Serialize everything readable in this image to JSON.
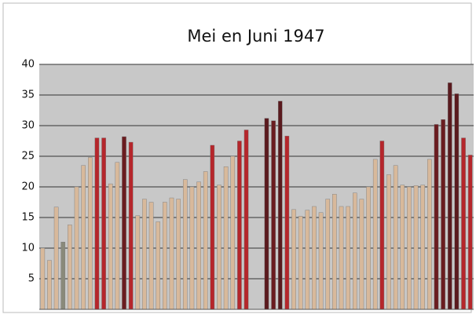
{
  "chart_data": {
    "type": "bar",
    "title": "Mei en Juni 1947",
    "categories": [
      null,
      null,
      null,
      null,
      null,
      null,
      null,
      null,
      null,
      null,
      null,
      null,
      null,
      null,
      null,
      null,
      null,
      null,
      null,
      null,
      null,
      null,
      null,
      null,
      null,
      null,
      null,
      null,
      null,
      null,
      null,
      null,
      null,
      null,
      null,
      null,
      null,
      null,
      null,
      null,
      null,
      null,
      null,
      null,
      null,
      null,
      null,
      null,
      null,
      null,
      null,
      null,
      null,
      null,
      null,
      null,
      null,
      null,
      null,
      null,
      null,
      null,
      null,
      null
    ],
    "values": [
      10,
      8,
      16.7,
      11,
      13.8,
      20,
      23.5,
      24.8,
      28,
      28,
      20.5,
      24,
      28.2,
      27.3,
      15.3,
      18,
      17.5,
      14.3,
      17.5,
      18.2,
      18,
      21.2,
      20,
      20.8,
      22.5,
      26.8,
      20.3,
      23.3,
      25,
      27.5,
      29.3,
      null,
      null,
      31.2,
      30.8,
      34,
      28.3,
      16.3,
      15.2,
      16.2,
      16.8,
      15.8,
      18,
      18.8,
      16.8,
      16.8,
      19,
      18,
      20,
      24.5,
      27.5,
      22,
      23.5,
      20.3,
      20,
      20.2,
      20.3,
      24.5,
      30.2,
      31,
      37,
      35.2,
      28,
      25.2
    ],
    "colors": [
      "#d8b99b",
      "#d8b99b",
      "#d8b99b",
      "#8a8a7a",
      "#d8b99b",
      "#d8b99b",
      "#d8b99b",
      "#d8b99b",
      "#b5262b",
      "#b5262b",
      "#d8b99b",
      "#d8b99b",
      "#6a1c20",
      "#b5262b",
      "#d8b99b",
      "#d8b99b",
      "#d8b99b",
      "#d8b99b",
      "#d8b99b",
      "#d8b99b",
      "#d8b99b",
      "#d8b99b",
      "#d8b99b",
      "#d8b99b",
      "#d8b99b",
      "#b5262b",
      "#d8b99b",
      "#d8b99b",
      "#d8b99b",
      "#b5262b",
      "#b5262b",
      null,
      null,
      "#5a1a1e",
      "#6a1c20",
      "#5a1a1e",
      "#b5262b",
      "#d8b99b",
      "#d8b99b",
      "#d8b99b",
      "#d8b99b",
      "#d8b99b",
      "#d8b99b",
      "#d8b99b",
      "#d8b99b",
      "#d8b99b",
      "#d8b99b",
      "#d8b99b",
      "#d8b99b",
      "#d8b99b",
      "#b5262b",
      "#d8b99b",
      "#d8b99b",
      "#d8b99b",
      "#d8b99b",
      "#d8b99b",
      "#d8b99b",
      "#d8b99b",
      "#6a1c20",
      "#6a1c20",
      "#5a1a1e",
      "#5a1a1e",
      "#b5262b",
      "#b5262b"
    ],
    "ylim": [
      0,
      40
    ],
    "yticks": [
      5,
      10,
      15,
      20,
      25,
      30,
      35,
      40
    ],
    "grid": true
  }
}
